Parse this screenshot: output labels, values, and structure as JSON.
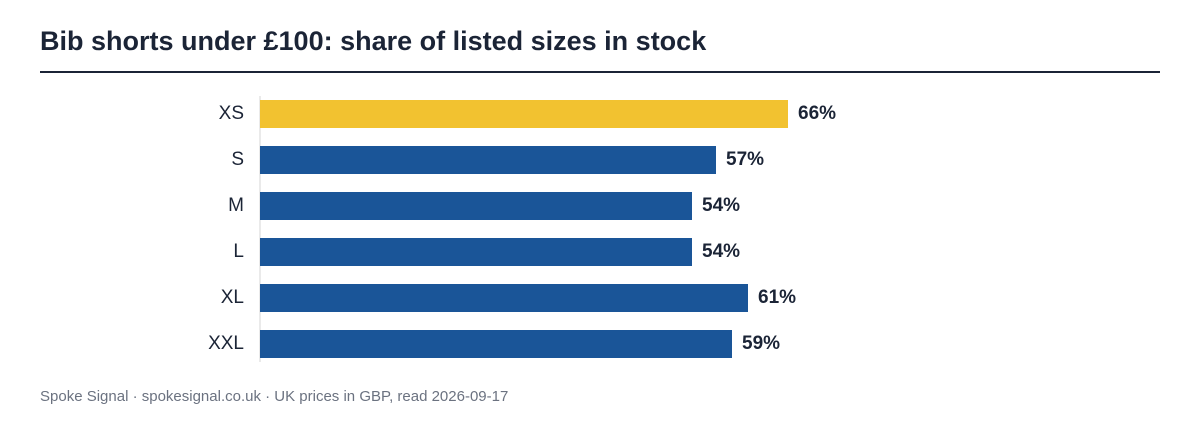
{
  "chart_data": {
    "type": "bar",
    "orientation": "horizontal",
    "title": "Bib shorts under £100: share of listed sizes in stock",
    "categories": [
      "XS",
      "S",
      "M",
      "L",
      "XL",
      "XXL"
    ],
    "values": [
      66,
      57,
      54,
      54,
      61,
      59
    ],
    "value_labels": [
      "66%",
      "57%",
      "54%",
      "54%",
      "61%",
      "59%"
    ],
    "unit": "%",
    "xlim": [
      0,
      100
    ],
    "grid": false,
    "legend": "none",
    "colors": {
      "default_bar": "#1a5598",
      "highlight_bar": "#f2c230",
      "text": "#1b2436",
      "axis": "#d4d4d4"
    },
    "highlight_index": 0
  },
  "footer": {
    "source": "Spoke Signal · spokesignal.co.uk · UK prices in GBP, read 2026-09-17"
  }
}
